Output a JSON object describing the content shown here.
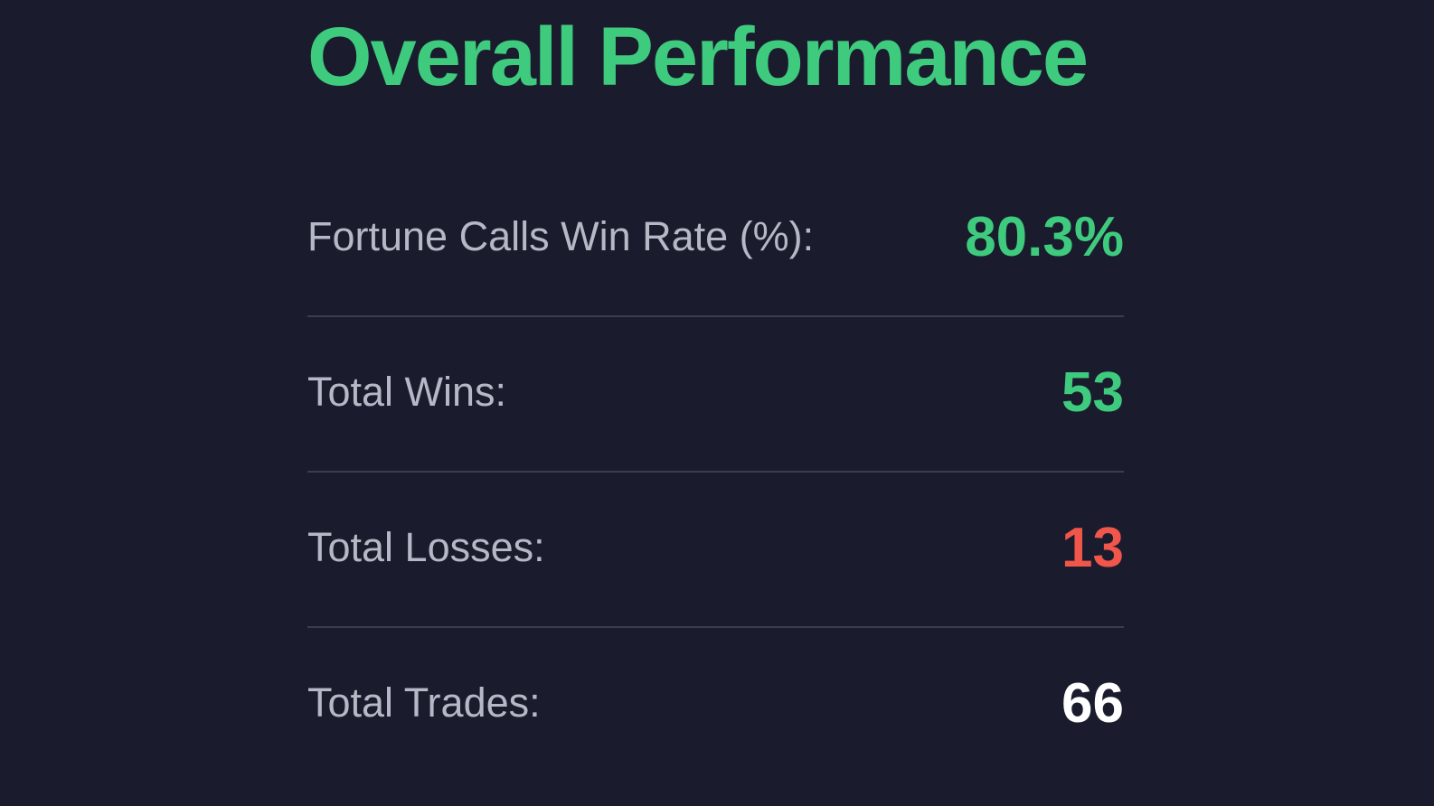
{
  "title": "Overall Performance",
  "stats": [
    {
      "label": "Fortune Calls Win Rate (%):",
      "value": "80.3%"
    },
    {
      "label": "Total Wins:",
      "value": "53"
    },
    {
      "label": "Total Losses:",
      "value": "13"
    },
    {
      "label": "Total Trades:",
      "value": "66"
    }
  ]
}
